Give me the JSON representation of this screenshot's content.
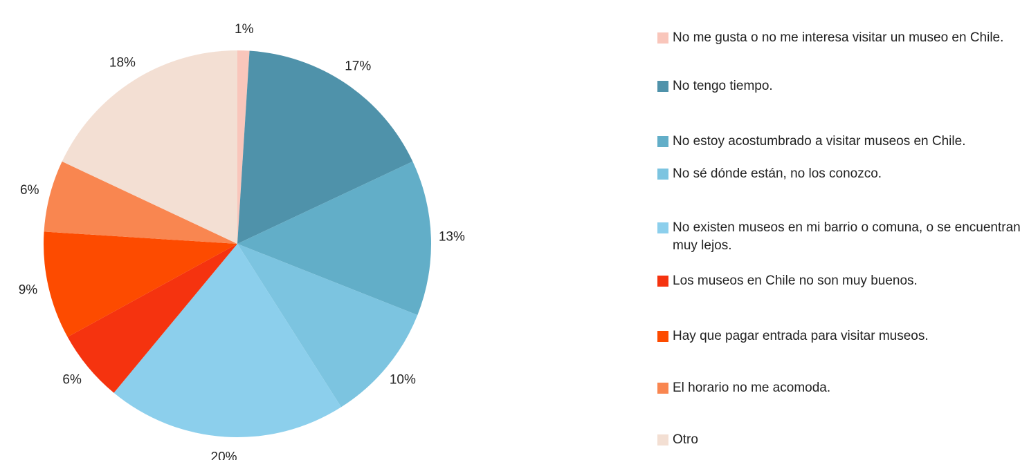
{
  "chart_data": {
    "type": "pie",
    "categories": [
      "No me gusta o no me interesa visitar un museo en Chile.",
      "No tengo tiempo.",
      "No estoy acostumbrado a visitar museos en Chile.",
      "No sé dónde están, no los conozco.",
      "No existen museos en mi barrio o comuna, o se encuentran muy lejos.",
      "Los museos en Chile no son muy buenos.",
      "Hay que pagar entrada para visitar museos.",
      "El horario no me acomoda.",
      "Otro"
    ],
    "values": [
      1,
      17,
      13,
      10,
      20,
      6,
      9,
      6,
      18
    ],
    "value_labels": [
      "1%",
      "17%",
      "13%",
      "10%",
      "20%",
      "6%",
      "9%",
      "6%",
      "18%"
    ],
    "colors": [
      "#f9c6bb",
      "#4f92aa",
      "#62aec8",
      "#7cc4e0",
      "#8ccfec",
      "#f5330f",
      "#fd4b00",
      "#f98650",
      "#f3dfd3"
    ],
    "legend": "right"
  }
}
